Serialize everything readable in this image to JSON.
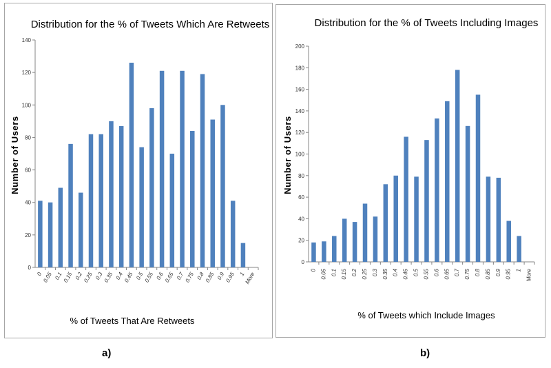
{
  "chart_data": [
    {
      "type": "bar",
      "panel_label": "a)",
      "title": "Distribution for the % of Tweets Which Are Retweets",
      "xlabel": "% of Tweets That Are Retweets",
      "ylabel": "Number of Users",
      "ylim": [
        0,
        140
      ],
      "yticks": [
        0,
        20,
        40,
        60,
        80,
        100,
        120,
        140
      ],
      "categories": [
        "0",
        "0.05",
        "0.1",
        "0.15",
        "0.2",
        "0.25",
        "0.3",
        "0.35",
        "0.4",
        "0.45",
        "0.5",
        "0.55",
        "0.6",
        "0.65",
        "0.7",
        "0.75",
        "0.8",
        "0.85",
        "0.9",
        "0.95",
        "1",
        "More"
      ],
      "values": [
        41,
        40,
        49,
        76,
        46,
        82,
        82,
        90,
        87,
        126,
        74,
        98,
        121,
        70,
        121,
        84,
        119,
        91,
        100,
        41,
        15,
        0
      ],
      "bar_color": "#4f81bd",
      "grid": false
    },
    {
      "type": "bar",
      "panel_label": "b)",
      "title": "Distribution for the % of Tweets Including Images",
      "xlabel": "% of Tweets which Include Images",
      "ylabel": "Number of Users",
      "ylim": [
        0,
        200
      ],
      "yticks": [
        0,
        20,
        40,
        60,
        80,
        100,
        120,
        140,
        160,
        180,
        200
      ],
      "categories": [
        "0",
        "0.05",
        "0.1",
        "0.15",
        "0.2",
        "0.25",
        "0.3",
        "0.35",
        "0.4",
        "0.45",
        "0.5",
        "0.55",
        "0.6",
        "0.65",
        "0.7",
        "0.75",
        "0.8",
        "0.85",
        "0.9",
        "0.95",
        "1",
        "More"
      ],
      "values": [
        18,
        19,
        24,
        40,
        37,
        54,
        42,
        72,
        80,
        116,
        79,
        113,
        133,
        149,
        178,
        126,
        155,
        79,
        78,
        38,
        24,
        0
      ],
      "bar_color": "#4f81bd",
      "grid": false
    }
  ]
}
